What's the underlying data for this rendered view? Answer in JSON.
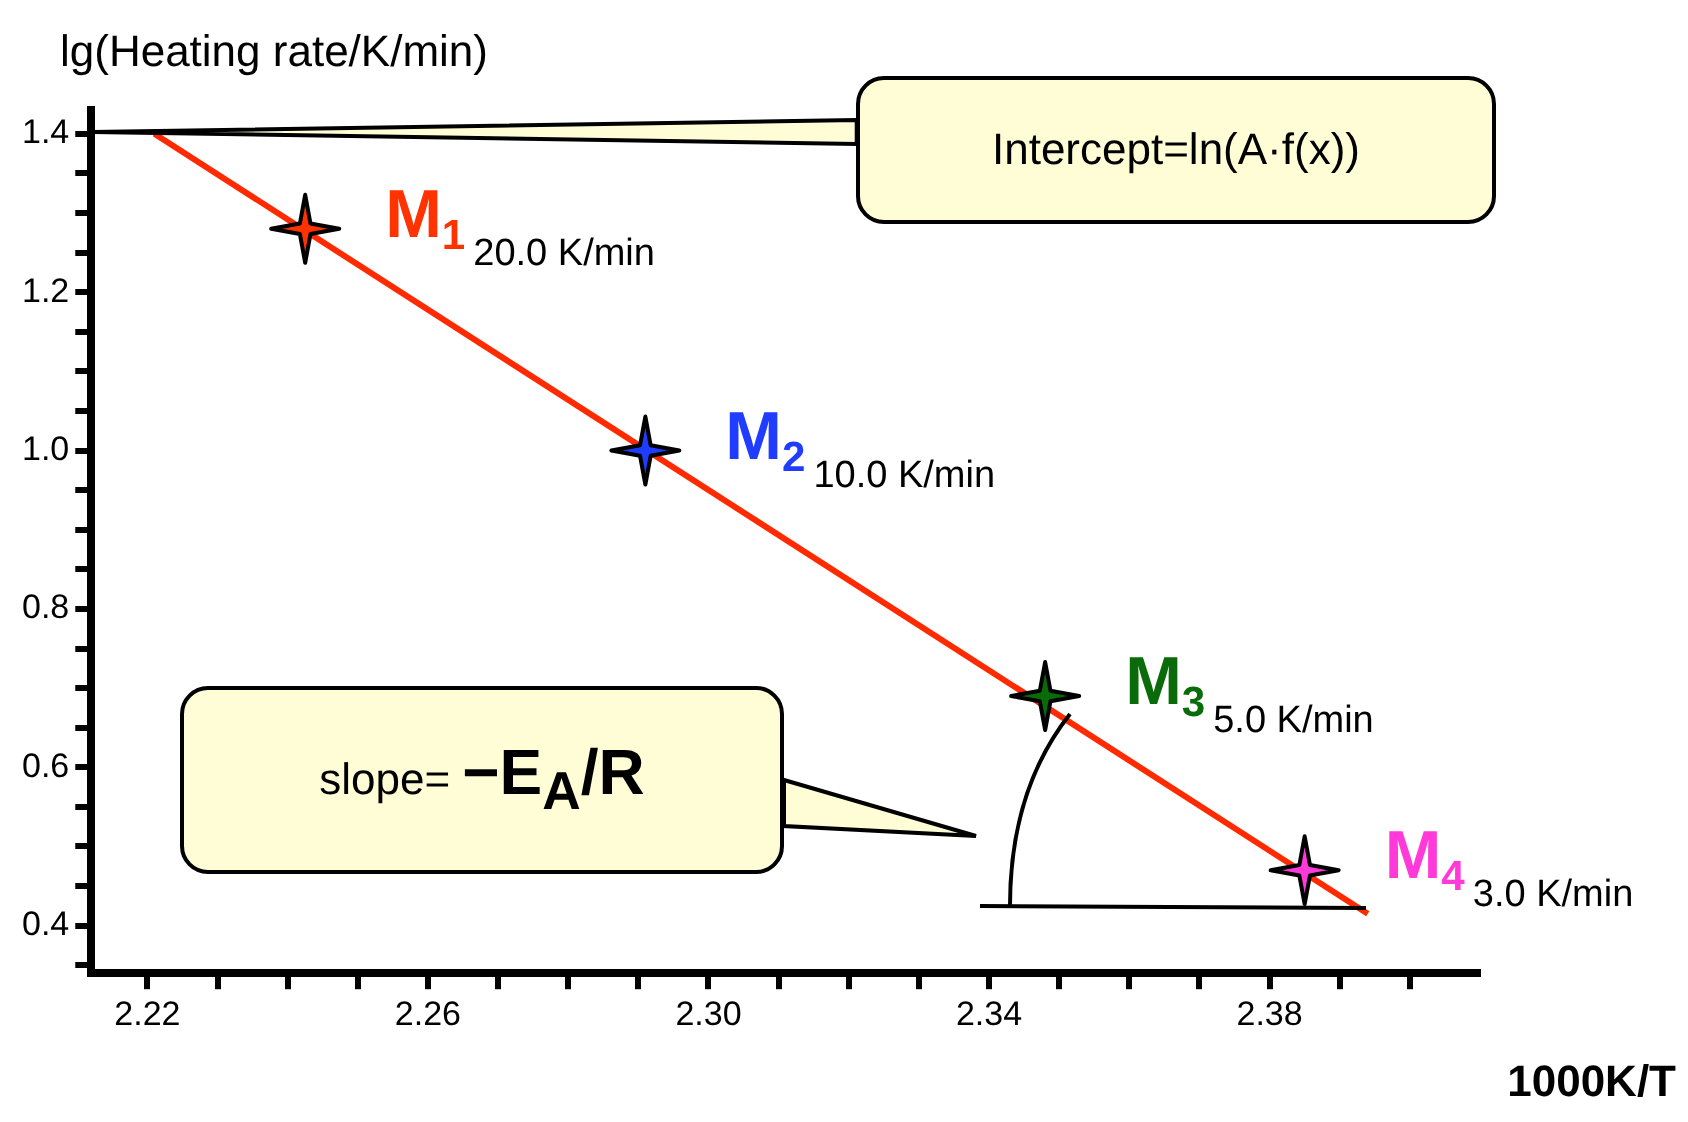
{
  "chart_data": {
    "type": "scatter",
    "xlabel": "1000K/T",
    "ylabel": "lg(Heating rate/K/min)",
    "xlim": [
      2.212,
      2.41
    ],
    "ylim": [
      0.34,
      1.43
    ],
    "xticks": [
      2.22,
      {
        "value": 2.23,
        "label": null
      },
      {
        "value": 2.24,
        "label": null
      },
      {
        "value": 2.25,
        "label": null
      },
      2.26,
      {
        "value": 2.27,
        "label": null
      },
      {
        "value": 2.28,
        "label": null
      },
      {
        "value": 2.29,
        "label": null
      },
      {
        "value": 2.3,
        "label": "2.30"
      },
      {
        "value": 2.31,
        "label": null
      },
      {
        "value": 2.32,
        "label": null
      },
      {
        "value": 2.33,
        "label": null
      },
      2.34,
      {
        "value": 2.35,
        "label": null
      },
      {
        "value": 2.36,
        "label": null
      },
      {
        "value": 2.37,
        "label": null
      },
      2.38,
      {
        "value": 2.39,
        "label": null
      },
      {
        "value": 2.4,
        "label": null
      }
    ],
    "yticks": [
      {
        "value": 0.35,
        "label": null
      },
      0.4,
      {
        "value": 0.45,
        "label": null
      },
      {
        "value": 0.5,
        "label": null
      },
      {
        "value": 0.55,
        "label": null
      },
      0.6,
      {
        "value": 0.65,
        "label": null
      },
      {
        "value": 0.7,
        "label": null
      },
      {
        "value": 0.75,
        "label": null
      },
      0.8,
      {
        "value": 0.85,
        "label": null
      },
      {
        "value": 0.9,
        "label": null
      },
      {
        "value": 0.95,
        "label": null
      },
      {
        "value": 1.0,
        "label": "1.0"
      },
      {
        "value": 1.05,
        "label": null
      },
      {
        "value": 1.1,
        "label": null
      },
      {
        "value": 1.15,
        "label": null
      },
      1.2,
      {
        "value": 1.25,
        "label": null
      },
      {
        "value": 1.3,
        "label": null
      },
      {
        "value": 1.35,
        "label": null
      },
      1.4
    ],
    "grid": false,
    "legend": false,
    "marker": "star",
    "series": [
      {
        "type": "line",
        "color": "#ff2a00",
        "x": [
          2.221,
          2.394
        ],
        "values": [
          1.4,
          0.415
        ],
        "marker": "none"
      },
      {
        "name": "M$_{1}$",
        "color": "#ff3300",
        "x": [
          2.2425
        ],
        "values": [
          1.28
        ]
      },
      {
        "name": "M$_{2}$",
        "color": "#1f3cff",
        "x": [
          2.291
        ],
        "values": [
          1.0
        ]
      },
      {
        "name": "M$_{3}$",
        "color": "#0a6b0a",
        "x": [
          2.348
        ],
        "values": [
          0.69
        ]
      },
      {
        "name": "M$_{4}$",
        "color": "#ff3ad8",
        "x": [
          2.385
        ],
        "values": [
          0.47
        ]
      }
    ],
    "annotations": [
      "20.0 K/min",
      "10.0 K/min",
      "5.0 K/min",
      "3.0 K/min",
      "Intercept=ln(A·f(x))",
      "slope= −E$_{A}$/R"
    ]
  }
}
